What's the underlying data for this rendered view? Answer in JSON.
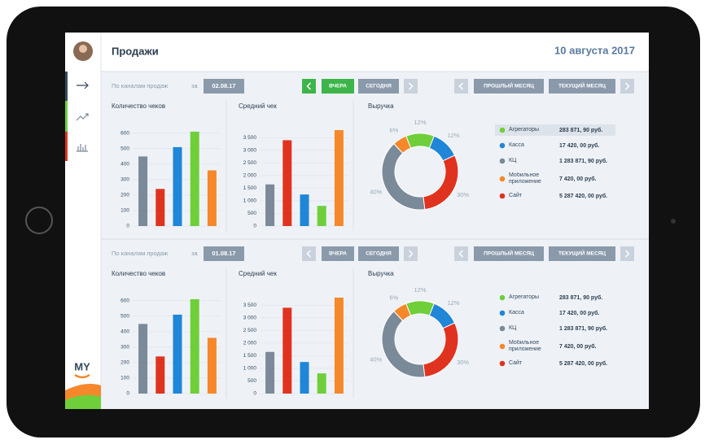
{
  "header": {
    "title": "Продажи",
    "date": "10 августа 2017"
  },
  "logo": "MY",
  "panels": [
    {
      "filter": {
        "label": "По каналам продаж",
        "preposition": "за",
        "date": "02.08.17",
        "buttons": [
          "ВЧЕРА",
          "СЕГОДНЯ",
          "ПРОШЛЫЙ МЕСЯЦ",
          "ТЕКУЩИЙ МЕСЯЦ"
        ],
        "active_button": 0
      },
      "charts": [
        {
          "type": "bar",
          "title": "Количество чеков",
          "values": [
            450,
            240,
            510,
            610,
            360
          ],
          "colors": [
            "#7a8a99",
            "#e0331f",
            "#1f86d8",
            "#6fcf3a",
            "#f5882a"
          ],
          "ylim": [
            0,
            620
          ],
          "yticks": [
            0,
            100,
            200,
            300,
            400,
            500,
            600
          ],
          "grid": true
        },
        {
          "type": "bar",
          "title": "Средний чек",
          "values": [
            1650,
            3400,
            1250,
            800,
            3800
          ],
          "colors": [
            "#7a8a99",
            "#e0331f",
            "#1f86d8",
            "#6fcf3a",
            "#f5882a"
          ],
          "ylim": [
            0,
            3800
          ],
          "yticks": [
            0,
            500,
            {
              "value": 1000,
              "label": "1 000"
            },
            {
              "value": 1500,
              "label": "1 500"
            },
            {
              "value": 2000,
              "label": "2 000"
            },
            {
              "value": 2500,
              "label": "2 500"
            },
            {
              "value": 3000,
              "label": "3 000"
            },
            {
              "value": 3500,
              "label": "3 500"
            }
          ],
          "grid": true
        },
        {
          "type": "pie",
          "title": "Выручка",
          "values": [
            12,
            12,
            30,
            40,
            6
          ],
          "value_labels": [
            "12%",
            "12%",
            "30%",
            "40%",
            "6%"
          ],
          "colors": [
            "#6fcf3a",
            "#1f86d8",
            "#e0331f",
            "#7a8a99",
            "#f5882a"
          ]
        }
      ],
      "legend": [
        {
          "name": "Агрегаторы",
          "amount": "283 871, 90 руб.",
          "color": "#6fcf3a"
        },
        {
          "name": "Касса",
          "amount": "17 420, 00 руб.",
          "color": "#1f86d8"
        },
        {
          "name": "КЦ",
          "amount": "1 283 871, 90 руб.",
          "color": "#7a8a99"
        },
        {
          "name": "Мобильное приложение",
          "amount": "7 420, 00 руб.",
          "color": "#f5882a"
        },
        {
          "name": "Сайт",
          "amount": "5 287 420, 00 руб.",
          "color": "#e0331f"
        }
      ]
    },
    {
      "filter": {
        "label": "По каналам продаж",
        "preposition": "за",
        "date": "01.08.17",
        "buttons": [
          "ВЧЕРА",
          "СЕГОДНЯ",
          "ПРОШЛЫЙ МЕСЯЦ",
          "ТЕКУЩИЙ МЕСЯЦ"
        ],
        "active_button": null
      },
      "charts": [
        {
          "type": "bar",
          "title": "Количество чеков",
          "values": [
            450,
            240,
            510,
            610,
            360
          ],
          "colors": [
            "#7a8a99",
            "#e0331f",
            "#1f86d8",
            "#6fcf3a",
            "#f5882a"
          ],
          "ylim": [
            0,
            620
          ],
          "yticks": [
            0,
            100,
            200,
            300,
            400,
            500,
            600
          ],
          "grid": true
        },
        {
          "type": "bar",
          "title": "Средний чек",
          "values": [
            1650,
            3400,
            1250,
            800,
            3800
          ],
          "colors": [
            "#7a8a99",
            "#e0331f",
            "#1f86d8",
            "#6fcf3a",
            "#f5882a"
          ],
          "ylim": [
            0,
            3800
          ],
          "yticks": [
            0,
            500,
            {
              "value": 1000,
              "label": "1 000"
            },
            {
              "value": 1500,
              "label": "1 500"
            },
            {
              "value": 2000,
              "label": "2 000"
            },
            {
              "value": 2500,
              "label": "2 500"
            },
            {
              "value": 3000,
              "label": "3 000"
            },
            {
              "value": 3500,
              "label": "3 500"
            }
          ],
          "grid": true
        },
        {
          "type": "pie",
          "title": "Выручка",
          "values": [
            12,
            12,
            30,
            40,
            6
          ],
          "value_labels": [
            "12%",
            "12%",
            "30%",
            "40%",
            "6%"
          ],
          "colors": [
            "#6fcf3a",
            "#1f86d8",
            "#e0331f",
            "#7a8a99",
            "#f5882a"
          ]
        }
      ],
      "legend": [
        {
          "name": "Агрегаторы",
          "amount": "283 871, 90 руб.",
          "color": "#6fcf3a"
        },
        {
          "name": "Касса",
          "amount": "17 420, 00 руб.",
          "color": "#1f86d8"
        },
        {
          "name": "КЦ",
          "amount": "1 283 871, 90 руб.",
          "color": "#7a8a99"
        },
        {
          "name": "Мобильное приложение",
          "amount": "7 420, 00 руб.",
          "color": "#f5882a"
        },
        {
          "name": "Сайт",
          "amount": "5 287 420, 00 руб.",
          "color": "#e0331f"
        }
      ]
    }
  ]
}
